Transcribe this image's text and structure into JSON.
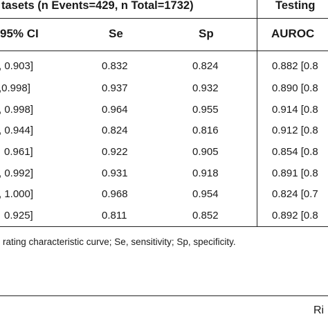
{
  "header": {
    "group_training": "tasets (n Events=429, n Total=1732)",
    "group_testing": "Testing"
  },
  "columns": {
    "ci": "95% CI",
    "se": "Se",
    "sp": "Sp",
    "auroc": "AUROC"
  },
  "rows": [
    {
      "ci": ", 0.903]",
      "se": "0.832",
      "sp": "0.824",
      "auroc": "0.882 [0.8"
    },
    {
      "ci": ",0.998]",
      "se": "0.937",
      "sp": "0.932",
      "auroc": "0.890 [0.8"
    },
    {
      "ci": ", 0.998]",
      "se": "0.964",
      "sp": "0.955",
      "auroc": "0.914 [0.8"
    },
    {
      "ci": ", 0.944]",
      "se": "0.824",
      "sp": "0.816",
      "auroc": "0.912 [0.8"
    },
    {
      "ci": "0.961]",
      "se": "0.922",
      "sp": "0.905",
      "auroc": "0.854 [0.8"
    },
    {
      "ci": ", 0.992]",
      "se": "0.931",
      "sp": "0.918",
      "auroc": "0.891 [0.8"
    },
    {
      "ci": ", 1.000]",
      "se": "0.968",
      "sp": "0.954",
      "auroc": "0.824 [0.7"
    },
    {
      "ci": "0.925]",
      "se": "0.811",
      "sp": "0.852",
      "auroc": "0.892 [0.8"
    }
  ],
  "footnote": "rating characteristic curve; Se, sensitivity; Sp, specificity.",
  "page_fragment": "Ri"
}
